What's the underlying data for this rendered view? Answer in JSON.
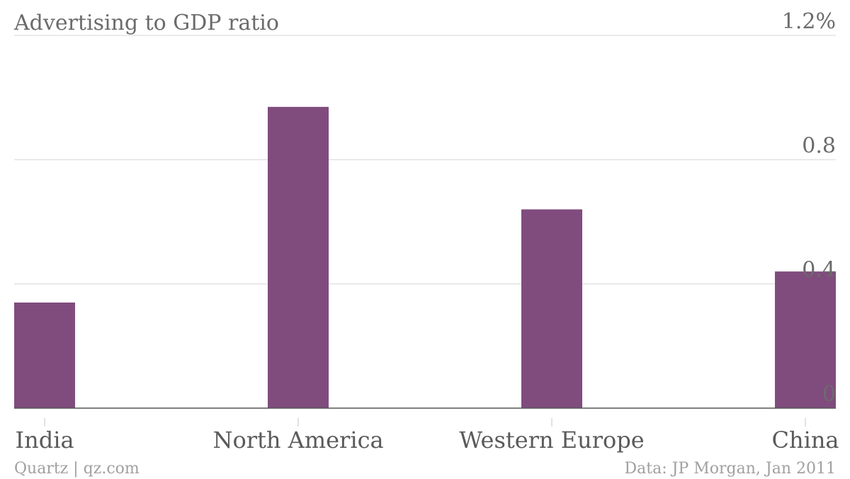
{
  "chart_data": {
    "type": "bar",
    "title": "Advertising to GDP ratio",
    "categories": [
      "India",
      "North America",
      "Western Europe",
      "China"
    ],
    "series": [
      {
        "values": [
          0.34,
          0.97,
          0.64,
          0.44
        ]
      }
    ],
    "ylim": [
      0,
      1.2
    ],
    "yticks": [
      {
        "value": 0,
        "label": "0"
      },
      {
        "value": 0.4,
        "label": "0.4"
      },
      {
        "value": 0.8,
        "label": "0.8"
      },
      {
        "value": 1.2,
        "label": "1.2%"
      }
    ],
    "grid": true,
    "axis_position": "right",
    "bar_color": "#804c7e"
  },
  "footer": {
    "source_left": "Quartz | qz.com",
    "source_right": "Data: JP Morgan, Jan 2011"
  }
}
